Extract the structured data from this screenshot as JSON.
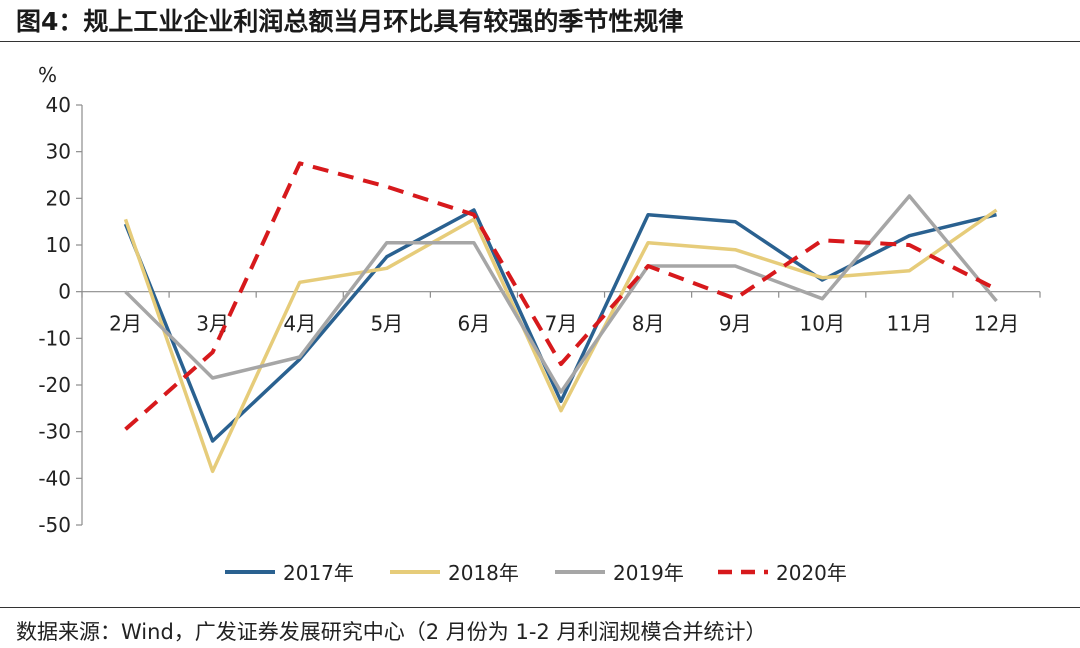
{
  "header": {
    "title": "图4：规上工业企业利润总额当月环比具有较强的季节性规律"
  },
  "footer": {
    "source": "数据来源：Wind，广发证券发展研究中心（2 月份为 1-2 月利润规模合并统计）"
  },
  "colors": {
    "s2017": "#2a6190",
    "s2018": "#e6cc7a",
    "s2019": "#a6a6a6",
    "s2020": "#d7191c"
  },
  "chart_data": {
    "type": "line",
    "title": "",
    "ylabel": "%",
    "xlabel": "",
    "ylim": [
      -50,
      40
    ],
    "yticks": [
      40,
      30,
      20,
      10,
      0,
      -10,
      -20,
      -30,
      -40,
      -50
    ],
    "categories": [
      "2月",
      "3月",
      "4月",
      "5月",
      "6月",
      "7月",
      "8月",
      "9月",
      "10月",
      "11月",
      "12月"
    ],
    "legend_position": "bottom",
    "series": [
      {
        "name": "2017年",
        "color": "#2a6190",
        "dash": false,
        "values": [
          14.5,
          -32,
          -14.5,
          7.5,
          17.5,
          -23.5,
          16.5,
          15,
          2.5,
          12,
          16.5
        ]
      },
      {
        "name": "2018年",
        "color": "#e6cc7a",
        "dash": false,
        "values": [
          15.5,
          -38.5,
          2,
          5,
          15.5,
          -25.5,
          10.5,
          9,
          3,
          4.5,
          17.5
        ]
      },
      {
        "name": "2019年",
        "color": "#a6a6a6",
        "dash": false,
        "values": [
          0,
          -18.5,
          -14,
          10.5,
          10.5,
          -21.5,
          5.5,
          5.5,
          -1.5,
          20.5,
          -2
        ]
      },
      {
        "name": "2020年",
        "color": "#d7191c",
        "dash": true,
        "values": [
          -29.5,
          -13,
          27.5,
          22.5,
          16.5,
          -15.5,
          5.5,
          -1.5,
          11,
          10,
          0.5
        ]
      }
    ]
  }
}
